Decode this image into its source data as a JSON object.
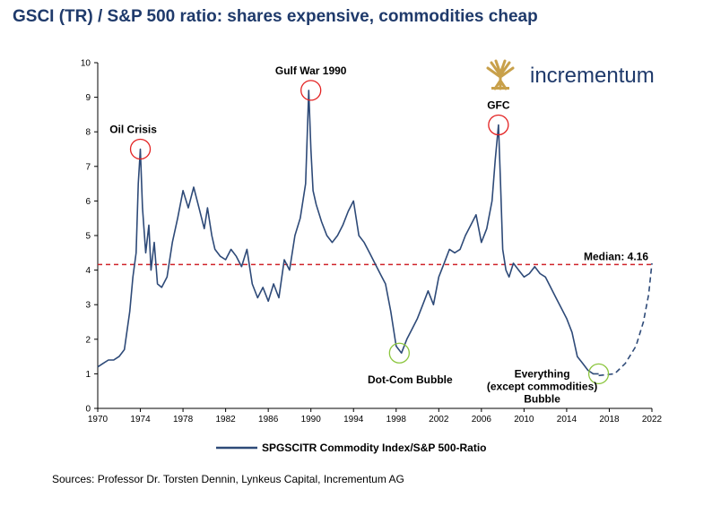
{
  "title": "GSCI (TR) / S&P 500 ratio: shares expensive, commodities cheap",
  "sources": "Sources: Professor Dr. Torsten Dennin, Lynkeus Capital, Incrementum AG",
  "logo": {
    "text": "incrementum",
    "icon": "tree-logo-icon",
    "color": "#1f3a6b",
    "icon_color": "#c8a04a"
  },
  "colors": {
    "series": "#2e4a78",
    "median": "#d0232a",
    "highlight_red": "#e32222",
    "highlight_green": "#8cc63f"
  },
  "chart_data": {
    "type": "line",
    "xlim": [
      1970,
      2022
    ],
    "ylim": [
      0,
      10
    ],
    "x_ticks": [
      1970,
      1974,
      1978,
      1982,
      1986,
      1990,
      1994,
      1998,
      2002,
      2006,
      2010,
      2014,
      2018,
      2022
    ],
    "y_ticks": [
      0,
      1,
      2,
      3,
      4,
      5,
      6,
      7,
      8,
      9,
      10
    ],
    "grid": false,
    "legend_position": "bottom-center",
    "series": [
      {
        "name": "SPGSCITR Commodity Index/S&P 500-Ratio",
        "x": [
          1970,
          1970.5,
          1971,
          1971.5,
          1972,
          1972.5,
          1973,
          1973.3,
          1973.6,
          1973.8,
          1974,
          1974.2,
          1974.5,
          1974.8,
          1975,
          1975.3,
          1975.6,
          1976,
          1976.5,
          1977,
          1977.5,
          1978,
          1978.5,
          1979,
          1979.5,
          1980,
          1980.3,
          1980.7,
          1981,
          1981.5,
          1982,
          1982.5,
          1983,
          1983.5,
          1984,
          1984.5,
          1985,
          1985.5,
          1986,
          1986.5,
          1987,
          1987.5,
          1988,
          1988.5,
          1989,
          1989.5,
          1989.8,
          1990,
          1990.2,
          1990.5,
          1991,
          1991.5,
          1992,
          1992.5,
          1993,
          1993.5,
          1994,
          1994.5,
          1995,
          1995.5,
          1996,
          1996.5,
          1997,
          1997.5,
          1998,
          1998.5,
          1999,
          1999.5,
          2000,
          2000.5,
          2001,
          2001.5,
          2002,
          2002.5,
          2003,
          2003.5,
          2004,
          2004.5,
          2005,
          2005.5,
          2006,
          2006.5,
          2007,
          2007.3,
          2007.6,
          2007.8,
          2008,
          2008.3,
          2008.6,
          2009,
          2009.5,
          2010,
          2010.5,
          2011,
          2011.5,
          2012,
          2012.5,
          2013,
          2013.5,
          2014,
          2014.5,
          2015,
          2015.5,
          2016,
          2016.5,
          2017
        ],
        "y": [
          1.2,
          1.3,
          1.4,
          1.4,
          1.5,
          1.7,
          2.8,
          3.8,
          4.5,
          6.5,
          7.5,
          5.8,
          4.5,
          5.3,
          4.0,
          4.8,
          3.6,
          3.5,
          3.8,
          4.8,
          5.5,
          6.3,
          5.8,
          6.4,
          5.8,
          5.2,
          5.8,
          5.0,
          4.6,
          4.4,
          4.3,
          4.6,
          4.4,
          4.1,
          4.6,
          3.6,
          3.2,
          3.5,
          3.1,
          3.6,
          3.2,
          4.3,
          4.0,
          5.0,
          5.5,
          6.5,
          9.2,
          7.5,
          6.3,
          5.9,
          5.4,
          5.0,
          4.8,
          5.0,
          5.3,
          5.7,
          6.0,
          5.0,
          4.8,
          4.5,
          4.2,
          3.9,
          3.6,
          2.8,
          1.8,
          1.6,
          2.0,
          2.3,
          2.6,
          3.0,
          3.4,
          3.0,
          3.8,
          4.2,
          4.6,
          4.5,
          4.6,
          5.0,
          5.3,
          5.6,
          4.8,
          5.2,
          6.0,
          7.2,
          8.2,
          6.5,
          4.6,
          4.0,
          3.8,
          4.2,
          4.0,
          3.8,
          3.9,
          4.1,
          3.9,
          3.8,
          3.5,
          3.2,
          2.9,
          2.6,
          2.2,
          1.5,
          1.3,
          1.1,
          1.0,
          1.0
        ]
      }
    ],
    "projection": {
      "x": [
        2017,
        2018.5,
        2019.5,
        2020.5,
        2021.2,
        2021.7,
        2022
      ],
      "y": [
        0.95,
        1.0,
        1.3,
        1.8,
        2.5,
        3.3,
        4.2
      ]
    },
    "median": {
      "value": 4.16,
      "label": "Median: 4.16"
    },
    "annotations": [
      {
        "label": "Oil Crisis",
        "lines": [
          "Oil Crisis"
        ],
        "x": 1974,
        "y": 7.5,
        "circle": "red",
        "label_pos": "above-left"
      },
      {
        "label": "Gulf War 1990",
        "lines": [
          "Gulf War 1990"
        ],
        "x": 1990,
        "y": 9.2,
        "circle": "red",
        "label_pos": "above"
      },
      {
        "label": "GFC",
        "lines": [
          "GFC"
        ],
        "x": 2007.6,
        "y": 8.2,
        "circle": "red",
        "label_pos": "above"
      },
      {
        "label": "Dot-Com Bubble",
        "lines": [
          "Dot-Com Bubble"
        ],
        "x": 1998.3,
        "y": 1.6,
        "circle": "green",
        "label_pos": "below"
      },
      {
        "label": "Everything (except commodities) Bubble",
        "lines": [
          "Everything",
          "(except commodities)",
          "Bubble"
        ],
        "x": 2017,
        "y": 1.0,
        "circle": "green",
        "label_pos": "left"
      }
    ]
  }
}
